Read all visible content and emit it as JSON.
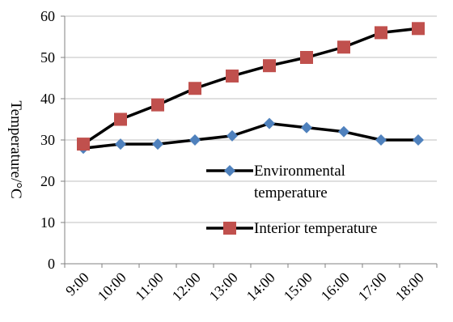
{
  "chart_data": {
    "type": "line",
    "ylabel": "Temperature/°C",
    "ylim": [
      0,
      60
    ],
    "yticks": [
      0,
      10,
      20,
      30,
      40,
      50,
      60
    ],
    "grid": true,
    "legend_position": "center-right",
    "categories": [
      "9:00",
      "10:00",
      "11:00",
      "12:00",
      "13:00",
      "14:00",
      "15:00",
      "16:00",
      "17:00",
      "18:00"
    ],
    "series": [
      {
        "name": "Environmental temperature",
        "name_lines": [
          "Environmental",
          "temperature"
        ],
        "marker": "diamond",
        "marker_color": "#4f81bd",
        "line_color": "#000000",
        "values": [
          28,
          29,
          29,
          30,
          31,
          34,
          33,
          32,
          30,
          30
        ]
      },
      {
        "name": "Interior temperature",
        "name_lines": [
          "Interior temperature"
        ],
        "marker": "square",
        "marker_color": "#c0504d",
        "line_color": "#000000",
        "values": [
          29,
          35,
          38.5,
          42.5,
          45.5,
          48,
          50,
          52.5,
          56,
          57
        ]
      }
    ]
  }
}
